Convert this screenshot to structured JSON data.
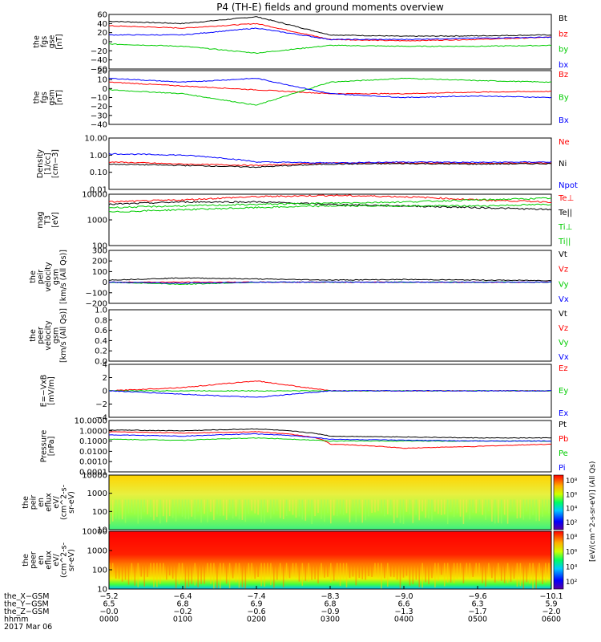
{
  "title": "P4 (TH-E) fields and ground moments overview",
  "panels": [
    {
      "id": "fgs",
      "ylabel": [
        "the",
        "fgs",
        "gse",
        "[nT]"
      ],
      "ticks": [
        "60",
        "40",
        "20",
        "0",
        "−20",
        "−40",
        "−60"
      ],
      "legend": [
        {
          "t": "Bt",
          "c": "#000000"
        },
        {
          "t": "bz",
          "c": "#ff0000"
        },
        {
          "t": "by",
          "c": "#00cc00"
        },
        {
          "t": "bx",
          "c": "#0000ff"
        }
      ]
    },
    {
      "id": "fgs_gsm",
      "ylabel": [
        "the",
        "fgs",
        "gsm",
        "[nT]"
      ],
      "ticks": [
        "20",
        "10",
        "0",
        "−10",
        "−20",
        "−30",
        "−40"
      ],
      "legend": [
        {
          "t": "Bz",
          "c": "#ff0000"
        },
        {
          "t": "By",
          "c": "#00cc00"
        },
        {
          "t": "Bx",
          "c": "#0000ff"
        }
      ]
    },
    {
      "id": "density",
      "ylabel": [
        "Density",
        "[1/cc]",
        "[cm−3]"
      ],
      "ticks": [
        "10.00",
        "1.00",
        "0.10",
        "0.01"
      ],
      "legend": [
        {
          "t": "Ne",
          "c": "#ff0000"
        },
        {
          "t": "Ni",
          "c": "#000000"
        },
        {
          "t": "Npot",
          "c": "#0000ff"
        }
      ]
    },
    {
      "id": "temp",
      "ylabel": [
        "mag",
        "T3",
        "[eV]"
      ],
      "ticks": [
        "10000",
        "1000",
        "100"
      ],
      "legend": [
        {
          "t": "Te⊥",
          "c": "#ff0000"
        },
        {
          "t": "Te||",
          "c": "#000000"
        },
        {
          "t": "Ti⊥",
          "c": "#00cc00"
        },
        {
          "t": "Ti||",
          "c": "#00cc00"
        }
      ]
    },
    {
      "id": "peir_vel",
      "ylabel": [
        "the",
        "peir",
        "velocity",
        "gsm",
        "[km/s (All Qs)]"
      ],
      "ticks": [
        "300",
        "200",
        "100",
        "0",
        "−100",
        "−200"
      ],
      "legend": [
        {
          "t": "Vt",
          "c": "#000000"
        },
        {
          "t": "Vz",
          "c": "#ff0000"
        },
        {
          "t": "Vy",
          "c": "#00cc00"
        },
        {
          "t": "Vx",
          "c": "#0000ff"
        }
      ]
    },
    {
      "id": "peer_vel",
      "ylabel": [
        "the",
        "peer",
        "velocity",
        "gsm",
        "[km/s (All Qs)]"
      ],
      "ticks": [
        "1.0",
        "0.8",
        "0.6",
        "0.4",
        "0.2",
        "0.0"
      ],
      "legend": [
        {
          "t": "Vt",
          "c": "#000000"
        },
        {
          "t": "Vz",
          "c": "#ff0000"
        },
        {
          "t": "Vy",
          "c": "#00cc00"
        },
        {
          "t": "Vx",
          "c": "#0000ff"
        }
      ]
    },
    {
      "id": "efield",
      "ylabel": [
        "E=−VxB",
        "[mV/m]"
      ],
      "ticks": [
        "4",
        "2",
        "0",
        "−2",
        "−4"
      ],
      "legend": [
        {
          "t": "Ez",
          "c": "#ff0000"
        },
        {
          "t": "Ey",
          "c": "#00cc00"
        },
        {
          "t": "Ex",
          "c": "#0000ff"
        }
      ]
    },
    {
      "id": "pressure",
      "ylabel": [
        "Pressure",
        "[nPa]"
      ],
      "ticks": [
        "10.0000",
        "1.0000",
        "0.1000",
        "0.0100",
        "0.0010",
        "0.0001"
      ],
      "legend": [
        {
          "t": "Pt",
          "c": "#000000"
        },
        {
          "t": "Pb",
          "c": "#ff0000"
        },
        {
          "t": "Pe",
          "c": "#00cc00"
        },
        {
          "t": "Pi",
          "c": "#0000ff"
        }
      ]
    },
    {
      "id": "peir_en",
      "ylabel": [
        "the",
        "peir",
        "en",
        "eflux",
        "eV/",
        "(cm^2-s-",
        "sr-eV)"
      ],
      "ticks": [
        "10000",
        "1000",
        "100",
        "10"
      ],
      "cbar": [
        "10⁸",
        "10⁶",
        "10⁴",
        "10²"
      ]
    },
    {
      "id": "peer_en",
      "ylabel": [
        "the",
        "peer",
        "en",
        "eflux",
        "eV/",
        "(cm^2-s-",
        "sr-eV)"
      ],
      "ticks": [
        "10000",
        "1000",
        "100",
        "10"
      ],
      "cbar": [
        "10⁸",
        "10⁶",
        "10⁴",
        "10²"
      ]
    }
  ],
  "cbar_label": "[eV/(cm^2-s-sr-eV)] (All Qs)",
  "xaxis": {
    "rows": [
      {
        "label": "the_X−GSM",
        "values": [
          "−5.2",
          "−6.4",
          "−7.4",
          "−8.3",
          "−9.0",
          "−9.6",
          "−10.1"
        ]
      },
      {
        "label": "the_Y−GSM",
        "values": [
          "6.5",
          "6.8",
          "6.9",
          "6.8",
          "6.6",
          "6.3",
          "5.9"
        ]
      },
      {
        "label": "the_Z−GSM",
        "values": [
          "−0.0",
          "−0.2",
          "−0.6",
          "−0.9",
          "−1.3",
          "−1.7",
          "−2.0"
        ]
      },
      {
        "label": "hhmm",
        "values": [
          "0000",
          "0100",
          "0200",
          "0300",
          "0400",
          "0500",
          "0600"
        ]
      }
    ],
    "date": "2017 Mar 06"
  },
  "chart_data": [
    {
      "type": "line",
      "name": "fgs gse",
      "ylim": [
        -60,
        60
      ],
      "x_hours": [
        0,
        1,
        2,
        3,
        4,
        5,
        6
      ],
      "series": [
        {
          "name": "Bt",
          "values": [
            45,
            40,
            55,
            15,
            12,
            13,
            15
          ]
        },
        {
          "name": "bz",
          "values": [
            35,
            30,
            40,
            5,
            2,
            5,
            10
          ]
        },
        {
          "name": "by",
          "values": [
            -5,
            -10,
            -25,
            -8,
            -10,
            -10,
            -8
          ]
        },
        {
          "name": "bx",
          "values": [
            15,
            15,
            30,
            5,
            5,
            8,
            10
          ]
        }
      ]
    },
    {
      "type": "line",
      "name": "fgs gsm",
      "ylim": [
        -45,
        25
      ],
      "x_hours": [
        0,
        1,
        2,
        3,
        4,
        5,
        6
      ],
      "series": [
        {
          "name": "Bz",
          "values": [
            10,
            5,
            0,
            -5,
            -5,
            -3,
            -2
          ]
        },
        {
          "name": "By",
          "values": [
            0,
            -5,
            -20,
            10,
            15,
            12,
            10
          ]
        },
        {
          "name": "Bx",
          "values": [
            15,
            10,
            15,
            -5,
            -10,
            -8,
            -10
          ]
        }
      ]
    },
    {
      "type": "line",
      "name": "Density",
      "ylog": true,
      "ylim": [
        0.01,
        10
      ],
      "x_hours": [
        0,
        1,
        2,
        3,
        4,
        5,
        6
      ],
      "series": [
        {
          "name": "Ne",
          "values": [
            0.4,
            0.3,
            0.25,
            0.35,
            0.35,
            0.33,
            0.35
          ]
        },
        {
          "name": "Ni",
          "values": [
            0.3,
            0.25,
            0.2,
            0.3,
            0.32,
            0.3,
            0.32
          ]
        },
        {
          "name": "Npot",
          "values": [
            1.2,
            1.0,
            0.4,
            0.35,
            0.4,
            0.38,
            0.4
          ]
        }
      ]
    },
    {
      "type": "line",
      "name": "magT3",
      "ylog": true,
      "ylim": [
        100,
        10000
      ],
      "x_hours": [
        0,
        1,
        2,
        3,
        4,
        5,
        6
      ],
      "series": [
        {
          "name": "Te⊥",
          "values": [
            5000,
            6000,
            8000,
            9000,
            8000,
            6000,
            5000
          ]
        },
        {
          "name": "Te||",
          "values": [
            4000,
            5000,
            5000,
            4000,
            3500,
            3000,
            2500
          ]
        },
        {
          "name": "Ti⊥",
          "values": [
            3000,
            3500,
            4000,
            4500,
            5000,
            6000,
            7000
          ]
        },
        {
          "name": "Ti||",
          "values": [
            2000,
            2500,
            3000,
            3500,
            3500,
            3500,
            4000
          ]
        }
      ]
    },
    {
      "type": "line",
      "name": "peir velocity",
      "ylim": [
        -200,
        300
      ],
      "x_hours": [
        0,
        1,
        2,
        3,
        4,
        5,
        6
      ],
      "series": [
        {
          "name": "Vt",
          "values": [
            20,
            40,
            30,
            20,
            25,
            20,
            15
          ]
        },
        {
          "name": "Vz",
          "values": [
            0,
            0,
            0,
            0,
            0,
            0,
            0
          ]
        },
        {
          "name": "Vy",
          "values": [
            0,
            -20,
            0,
            0,
            0,
            0,
            0
          ]
        },
        {
          "name": "Vx",
          "values": [
            0,
            -10,
            0,
            0,
            0,
            0,
            0
          ]
        }
      ]
    },
    {
      "type": "line",
      "name": "peer velocity",
      "ylim": [
        0,
        1
      ],
      "x_hours": [
        0,
        6
      ],
      "series": []
    },
    {
      "type": "line",
      "name": "E=-VxB",
      "ylim": [
        -4,
        4
      ],
      "x_hours": [
        0,
        1,
        2,
        3,
        4,
        5,
        6
      ],
      "series": [
        {
          "name": "Ez",
          "values": [
            0,
            0.5,
            1.5,
            0,
            0,
            0,
            0
          ]
        },
        {
          "name": "Ey",
          "values": [
            0,
            0,
            0,
            0,
            0,
            0,
            0
          ]
        },
        {
          "name": "Ex",
          "values": [
            0,
            -0.5,
            -1,
            0,
            0,
            0,
            0
          ]
        }
      ]
    },
    {
      "type": "line",
      "name": "Pressure",
      "ylog": true,
      "ylim": [
        0.0001,
        10
      ],
      "x_hours": [
        0,
        1,
        2,
        3,
        4,
        5,
        6
      ],
      "series": [
        {
          "name": "Pt",
          "values": [
            1.2,
            1.0,
            1.5,
            0.3,
            0.25,
            0.2,
            0.2
          ]
        },
        {
          "name": "Pb",
          "values": [
            0.8,
            0.6,
            0.8,
            0.05,
            0.02,
            0.03,
            0.05
          ]
        },
        {
          "name": "Pe",
          "values": [
            0.15,
            0.12,
            0.2,
            0.1,
            0.1,
            0.1,
            0.1
          ]
        },
        {
          "name": "Pi",
          "values": [
            0.4,
            0.3,
            0.5,
            0.15,
            0.12,
            0.1,
            0.1
          ]
        }
      ]
    },
    {
      "type": "heatmap",
      "name": "peir en eflux",
      "ylog": true,
      "ylim": [
        10,
        20000
      ],
      "clog": true,
      "clim": [
        100,
        100000000
      ]
    },
    {
      "type": "heatmap",
      "name": "peer en eflux",
      "ylog": true,
      "ylim": [
        10,
        20000
      ],
      "clog": true,
      "clim": [
        100,
        100000000
      ]
    }
  ]
}
